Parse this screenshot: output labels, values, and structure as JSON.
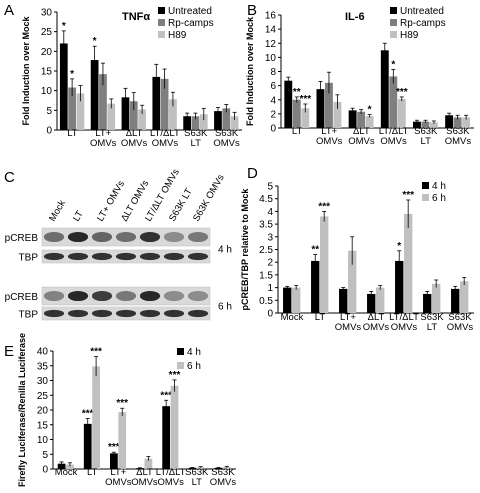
{
  "colors": {
    "series1": "#000000",
    "series2": "#7f7f7f",
    "series3": "#c0c0c0"
  },
  "chart_data": [
    {
      "panel": "A",
      "type": "bar",
      "title": "TNFα",
      "xlabel": "",
      "ylabel": "Fold Induction over Mock",
      "ylim": [
        0,
        30
      ],
      "yticks": [
        "0",
        "5",
        "10",
        "15",
        "20",
        "25",
        "30"
      ],
      "categories": [
        "LT",
        "LT+\nOMVs",
        "ΔLT\nOMVs",
        "LT/ΔLT\nOMVs",
        "S63K\nLT",
        "S63K\nOMVs"
      ],
      "series": [
        {
          "name": "Untreated",
          "values": [
            22,
            17.8,
            8.3,
            13.5,
            3.5,
            4.8
          ],
          "errors": [
            3.2,
            3.5,
            2.3,
            3.2,
            0.8,
            0.9
          ]
        },
        {
          "name": "Rp-camps",
          "values": [
            10.8,
            14.2,
            7.3,
            13,
            3.5,
            5.5
          ],
          "errors": [
            2.2,
            2.8,
            2.2,
            2.5,
            0.8,
            1
          ]
        },
        {
          "name": "H89",
          "values": [
            9.3,
            6.7,
            5.2,
            7.8,
            4,
            3.5
          ],
          "errors": [
            2,
            1.2,
            1.1,
            1.8,
            1.5,
            1
          ]
        }
      ],
      "stars": [
        "*",
        "*",
        "",
        "*",
        "",
        "",
        "",
        "",
        "",
        "",
        "",
        "",
        "",
        "",
        "",
        "",
        "",
        ""
      ],
      "legend": "top-right"
    },
    {
      "panel": "B",
      "type": "bar",
      "title": "IL-6",
      "xlabel": "",
      "ylabel": "Fold Induction over Mock",
      "ylim": [
        0,
        16
      ],
      "yticks": [
        "0",
        "2",
        "4",
        "6",
        "8",
        "10",
        "12",
        "14",
        "16"
      ],
      "categories": [
        "LT",
        "LT+\nOMVs",
        "ΔLT\nOMVs",
        "LT/ΔLT\nOMVs",
        "S63K\nLT",
        "S63K\nOMVs"
      ],
      "series": [
        {
          "name": "Untreated",
          "values": [
            6.7,
            5.5,
            2.5,
            11,
            0.9,
            1.8
          ],
          "errors": [
            0.5,
            1.1,
            0.3,
            1,
            0.2,
            0.3
          ]
        },
        {
          "name": "Rp-camps",
          "values": [
            4,
            6.4,
            2.3,
            7.3,
            0.9,
            1.5
          ],
          "errors": [
            0.4,
            1.5,
            0.3,
            1,
            0.2,
            0.3
          ]
        },
        {
          "name": "H89",
          "values": [
            2.8,
            3.7,
            1.7,
            4.1,
            0.8,
            1.5
          ],
          "errors": [
            0.6,
            1,
            0.2,
            0.3,
            0.2,
            0.3
          ]
        }
      ],
      "stars": [
        "",
        "**",
        "***",
        "",
        "",
        "",
        "",
        "",
        "*",
        "",
        "*",
        "***",
        "",
        "",
        "",
        "",
        "",
        ""
      ],
      "legend": "top-right"
    },
    {
      "panel": "D",
      "type": "bar",
      "title": "",
      "xlabel": "",
      "ylabel": "pCREB/TBP relative to Mock",
      "ylim": [
        0,
        5
      ],
      "yticks": [
        "0",
        "0.5",
        "1",
        "1.5",
        "2",
        "2.5",
        "3",
        "3.5",
        "4",
        "4.5",
        "5"
      ],
      "categories": [
        "Mock",
        "LT",
        "LT+\nOMVs",
        "ΔLT\nOMVs",
        "LT/ΔLT\nOMVs",
        "S63K\nLT",
        "S63K\nOMVs"
      ],
      "series": [
        {
          "name": "4 h",
          "values": [
            1,
            2.05,
            0.95,
            0.75,
            2.05,
            0.75,
            0.95
          ],
          "errors": [
            0.05,
            0.25,
            0.05,
            0.1,
            0.4,
            0.1,
            0.1
          ]
        },
        {
          "name": "6 h",
          "values": [
            1,
            3.8,
            2.45,
            1,
            3.9,
            1.15,
            1.25
          ],
          "errors": [
            0.08,
            0.2,
            0.55,
            0.08,
            0.55,
            0.15,
            0.15
          ]
        }
      ],
      "stars": [
        "",
        "",
        "**",
        "***",
        "",
        "",
        "",
        "",
        "*",
        "***",
        "",
        "",
        "",
        ""
      ],
      "legend": "top-right"
    },
    {
      "panel": "E",
      "type": "bar",
      "title": "",
      "xlabel": "",
      "ylabel": "Firefly Luciferase/Renilla Luciferase",
      "ylim": [
        0,
        40
      ],
      "yticks": [
        "0",
        "5",
        "10",
        "15",
        "20",
        "25",
        "30",
        "35",
        "40"
      ],
      "categories": [
        "Mock",
        "LT",
        "LT+\nOMVs",
        "ΔLT\nOMVs",
        "LT/ΔLT\nOMVs",
        "S63K\nLT",
        "S63K\nOMVs"
      ],
      "series": [
        {
          "name": "4 h",
          "values": [
            1.8,
            15.3,
            5.3,
            0.3,
            21.3,
            0.4,
            0.4
          ],
          "errors": [
            0.6,
            1.8,
            0.4,
            0.1,
            2,
            0.1,
            0.1
          ]
        },
        {
          "name": "6 h",
          "values": [
            1.5,
            34.8,
            19.3,
            3.5,
            28.2,
            0.6,
            0.7
          ],
          "errors": [
            0.6,
            3.3,
            1.3,
            0.7,
            2,
            0.2,
            0.2
          ]
        }
      ],
      "stars": [
        "",
        "",
        "***",
        "***",
        "***",
        "***",
        "",
        "",
        "***",
        "***",
        "",
        "",
        "",
        ""
      ],
      "legend": "top-right"
    }
  ],
  "blot": {
    "panel": "C",
    "lanes": [
      "Mock",
      "LT",
      "LT+ OMVs",
      "ΔLT OMVs",
      "LT/ΔLT OMVs",
      "S63K LT",
      "S63K OMVs"
    ],
    "rows": [
      {
        "label": "pCREB",
        "time": "",
        "intensity": [
          0.55,
          0.9,
          0.6,
          0.55,
          0.85,
          0.4,
          0.5
        ]
      },
      {
        "label": "TBP",
        "time": "4 h",
        "intensity": [
          0.85,
          0.85,
          0.85,
          0.85,
          0.85,
          0.85,
          0.85
        ]
      },
      {
        "label": "pCREB",
        "time": "",
        "intensity": [
          0.45,
          0.9,
          0.8,
          0.5,
          0.9,
          0.4,
          0.4
        ]
      },
      {
        "label": "TBP",
        "time": "6 h",
        "intensity": [
          0.85,
          0.85,
          0.85,
          0.85,
          0.85,
          0.85,
          0.85
        ]
      }
    ]
  }
}
